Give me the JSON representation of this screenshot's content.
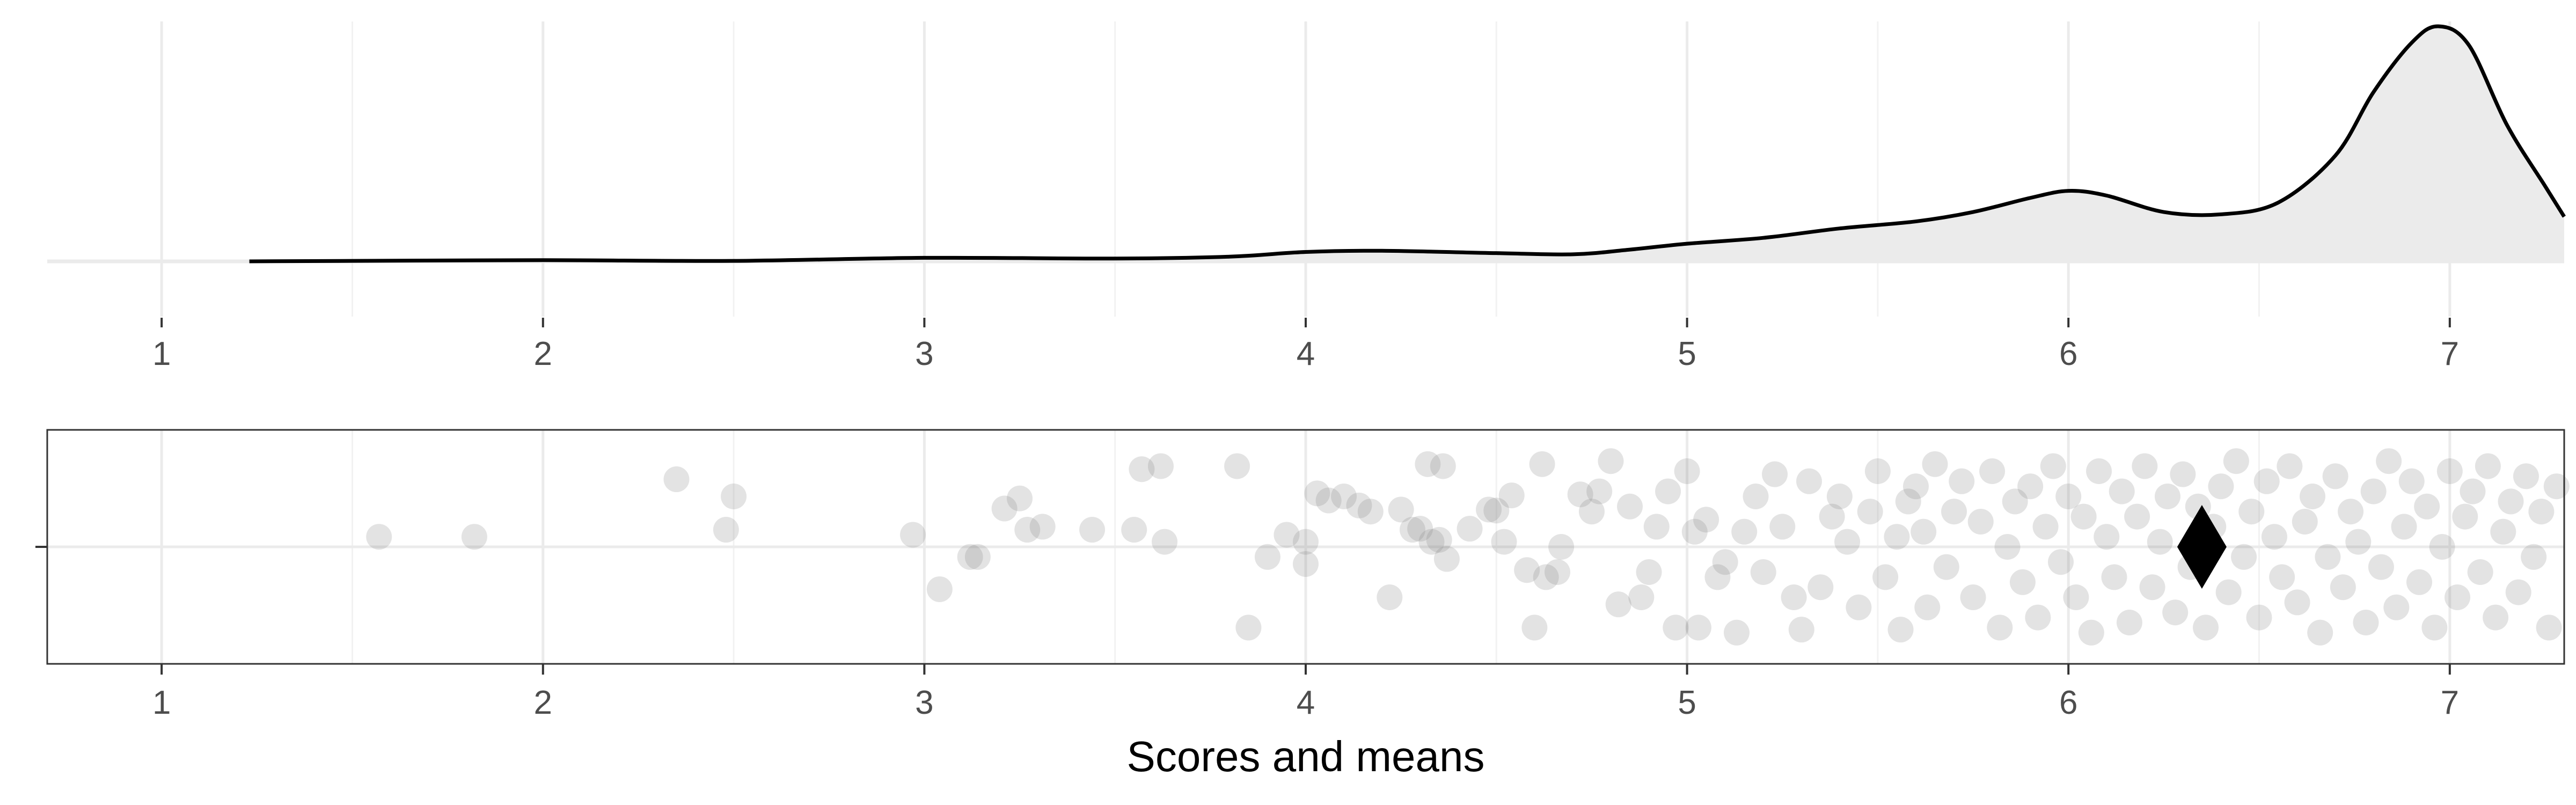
{
  "chart_data": [
    {
      "type": "area",
      "panel": "density",
      "x": [
        1.23,
        1.5,
        2.0,
        2.5,
        3.0,
        3.5,
        3.8,
        4.0,
        4.2,
        4.5,
        4.7,
        4.85,
        5.0,
        5.2,
        5.4,
        5.6,
        5.75,
        5.9,
        6.0,
        6.1,
        6.25,
        6.4,
        6.55,
        6.7,
        6.8,
        6.9,
        6.97,
        7.05,
        7.15,
        7.25,
        7.3
      ],
      "y": [
        0.0,
        0.002,
        0.005,
        0.002,
        0.015,
        0.012,
        0.02,
        0.04,
        0.045,
        0.035,
        0.03,
        0.05,
        0.075,
        0.1,
        0.14,
        0.17,
        0.21,
        0.27,
        0.3,
        0.28,
        0.21,
        0.2,
        0.25,
        0.45,
        0.72,
        0.93,
        1.0,
        0.92,
        0.58,
        0.32,
        0.19
      ],
      "xlim": [
        0.7,
        7.3
      ],
      "ylim": [
        0,
        1.0
      ],
      "x_ticks": [
        "1",
        "2",
        "3",
        "4",
        "5",
        "6",
        "7"
      ],
      "fill_color": "#ebebeb",
      "line_color": "#000000",
      "grid": true
    },
    {
      "type": "scatter",
      "panel": "scores",
      "xlabel": "Scores and means",
      "x_ticks": [
        "1",
        "2",
        "3",
        "4",
        "5",
        "6",
        "7"
      ],
      "xlim": [
        0.7,
        7.3
      ],
      "ylim": [
        -1,
        1
      ],
      "point_color": "#808080",
      "point_opacity": 0.22,
      "points": [
        [
          1.57,
          0.1
        ],
        [
          1.82,
          0.1
        ],
        [
          2.35,
          0.67
        ],
        [
          2.5,
          0.5
        ],
        [
          2.48,
          0.17
        ],
        [
          2.97,
          0.12
        ],
        [
          3.04,
          -0.42
        ],
        [
          3.12,
          -0.1
        ],
        [
          3.14,
          -0.1
        ],
        [
          3.21,
          0.38
        ],
        [
          3.25,
          0.48
        ],
        [
          3.27,
          0.17
        ],
        [
          3.31,
          0.2
        ],
        [
          3.44,
          0.17
        ],
        [
          3.55,
          0.17
        ],
        [
          3.57,
          0.77
        ],
        [
          3.62,
          0.8
        ],
        [
          3.63,
          0.05
        ],
        [
          3.82,
          0.8
        ],
        [
          3.85,
          -0.8
        ],
        [
          3.9,
          -0.1
        ],
        [
          3.95,
          0.12
        ],
        [
          4.0,
          0.05
        ],
        [
          4.0,
          -0.17
        ],
        [
          4.03,
          0.53
        ],
        [
          4.06,
          0.46
        ],
        [
          4.1,
          0.5
        ],
        [
          4.14,
          0.41
        ],
        [
          4.17,
          0.35
        ],
        [
          4.22,
          -0.5
        ],
        [
          4.25,
          0.37
        ],
        [
          4.28,
          0.17
        ],
        [
          4.3,
          0.18
        ],
        [
          4.32,
          0.82
        ],
        [
          4.33,
          0.05
        ],
        [
          4.35,
          0.07
        ],
        [
          4.36,
          0.8
        ],
        [
          4.37,
          -0.12
        ],
        [
          4.43,
          0.18
        ],
        [
          4.48,
          0.37
        ],
        [
          4.5,
          0.36
        ],
        [
          4.52,
          0.05
        ],
        [
          4.54,
          0.51
        ],
        [
          4.58,
          -0.23
        ],
        [
          4.6,
          -0.8
        ],
        [
          4.62,
          0.82
        ],
        [
          4.63,
          -0.3
        ],
        [
          4.66,
          -0.25
        ],
        [
          4.67,
          0.0
        ],
        [
          4.72,
          0.52
        ],
        [
          4.75,
          0.35
        ],
        [
          4.77,
          0.55
        ],
        [
          4.8,
          0.85
        ],
        [
          4.82,
          -0.57
        ],
        [
          4.85,
          0.4
        ],
        [
          4.88,
          -0.5
        ],
        [
          4.9,
          -0.25
        ],
        [
          4.92,
          0.2
        ],
        [
          4.95,
          0.55
        ],
        [
          4.97,
          -0.8
        ],
        [
          5.0,
          0.75
        ],
        [
          5.02,
          0.15
        ],
        [
          5.03,
          -0.8
        ],
        [
          5.05,
          0.27
        ],
        [
          5.08,
          -0.3
        ],
        [
          5.1,
          -0.15
        ],
        [
          5.13,
          -0.85
        ],
        [
          5.15,
          0.15
        ],
        [
          5.18,
          0.5
        ],
        [
          5.2,
          -0.25
        ],
        [
          5.23,
          0.72
        ],
        [
          5.25,
          0.2
        ],
        [
          5.28,
          -0.5
        ],
        [
          5.3,
          -0.82
        ],
        [
          5.32,
          0.65
        ],
        [
          5.35,
          -0.4
        ],
        [
          5.38,
          0.3
        ],
        [
          5.4,
          0.5
        ],
        [
          5.42,
          0.05
        ],
        [
          5.45,
          -0.6
        ],
        [
          5.48,
          0.35
        ],
        [
          5.5,
          0.75
        ],
        [
          5.52,
          -0.3
        ],
        [
          5.55,
          0.1
        ],
        [
          5.56,
          -0.82
        ],
        [
          5.58,
          0.45
        ],
        [
          5.6,
          0.6
        ],
        [
          5.62,
          0.15
        ],
        [
          5.63,
          -0.6
        ],
        [
          5.65,
          0.82
        ],
        [
          5.68,
          -0.2
        ],
        [
          5.7,
          0.35
        ],
        [
          5.72,
          0.65
        ],
        [
          5.75,
          -0.5
        ],
        [
          5.77,
          0.25
        ],
        [
          5.8,
          0.75
        ],
        [
          5.82,
          -0.8
        ],
        [
          5.84,
          0.0
        ],
        [
          5.86,
          0.45
        ],
        [
          5.88,
          -0.35
        ],
        [
          5.9,
          0.6
        ],
        [
          5.92,
          -0.7
        ],
        [
          5.94,
          0.2
        ],
        [
          5.96,
          0.8
        ],
        [
          5.98,
          -0.15
        ],
        [
          6.0,
          0.5
        ],
        [
          6.02,
          -0.5
        ],
        [
          6.04,
          0.3
        ],
        [
          6.06,
          -0.85
        ],
        [
          6.08,
          0.75
        ],
        [
          6.1,
          0.1
        ],
        [
          6.12,
          -0.3
        ],
        [
          6.14,
          0.55
        ],
        [
          6.16,
          -0.75
        ],
        [
          6.18,
          0.3
        ],
        [
          6.2,
          0.8
        ],
        [
          6.22,
          -0.4
        ],
        [
          6.24,
          0.05
        ],
        [
          6.26,
          0.5
        ],
        [
          6.28,
          -0.65
        ],
        [
          6.3,
          0.72
        ],
        [
          6.32,
          -0.2
        ],
        [
          6.34,
          0.4
        ],
        [
          6.36,
          -0.8
        ],
        [
          6.38,
          0.2
        ],
        [
          6.4,
          0.6
        ],
        [
          6.42,
          -0.45
        ],
        [
          6.44,
          0.85
        ],
        [
          6.46,
          -0.1
        ],
        [
          6.48,
          0.35
        ],
        [
          6.5,
          -0.7
        ],
        [
          6.52,
          0.65
        ],
        [
          6.54,
          0.1
        ],
        [
          6.56,
          -0.3
        ],
        [
          6.58,
          0.8
        ],
        [
          6.6,
          -0.55
        ],
        [
          6.62,
          0.25
        ],
        [
          6.64,
          0.5
        ],
        [
          6.66,
          -0.85
        ],
        [
          6.68,
          -0.1
        ],
        [
          6.7,
          0.7
        ],
        [
          6.72,
          -0.4
        ],
        [
          6.74,
          0.35
        ],
        [
          6.76,
          0.05
        ],
        [
          6.78,
          -0.75
        ],
        [
          6.8,
          0.55
        ],
        [
          6.82,
          -0.2
        ],
        [
          6.84,
          0.85
        ],
        [
          6.86,
          -0.6
        ],
        [
          6.88,
          0.2
        ],
        [
          6.9,
          0.65
        ],
        [
          6.92,
          -0.35
        ],
        [
          6.94,
          0.4
        ],
        [
          6.96,
          -0.8
        ],
        [
          6.98,
          0.0
        ],
        [
          7.0,
          0.75
        ],
        [
          7.02,
          -0.5
        ],
        [
          7.04,
          0.3
        ],
        [
          7.06,
          0.55
        ],
        [
          7.08,
          -0.25
        ],
        [
          7.1,
          0.8
        ],
        [
          7.12,
          -0.7
        ],
        [
          7.14,
          0.15
        ],
        [
          7.16,
          0.45
        ],
        [
          7.18,
          -0.45
        ],
        [
          7.2,
          0.7
        ],
        [
          7.22,
          -0.1
        ],
        [
          7.24,
          0.35
        ],
        [
          7.26,
          -0.8
        ],
        [
          7.28,
          0.6
        ]
      ],
      "mean": {
        "x": 6.35,
        "y": 0.0,
        "shape": "diamond",
        "color": "#000000"
      },
      "grid": true
    }
  ]
}
